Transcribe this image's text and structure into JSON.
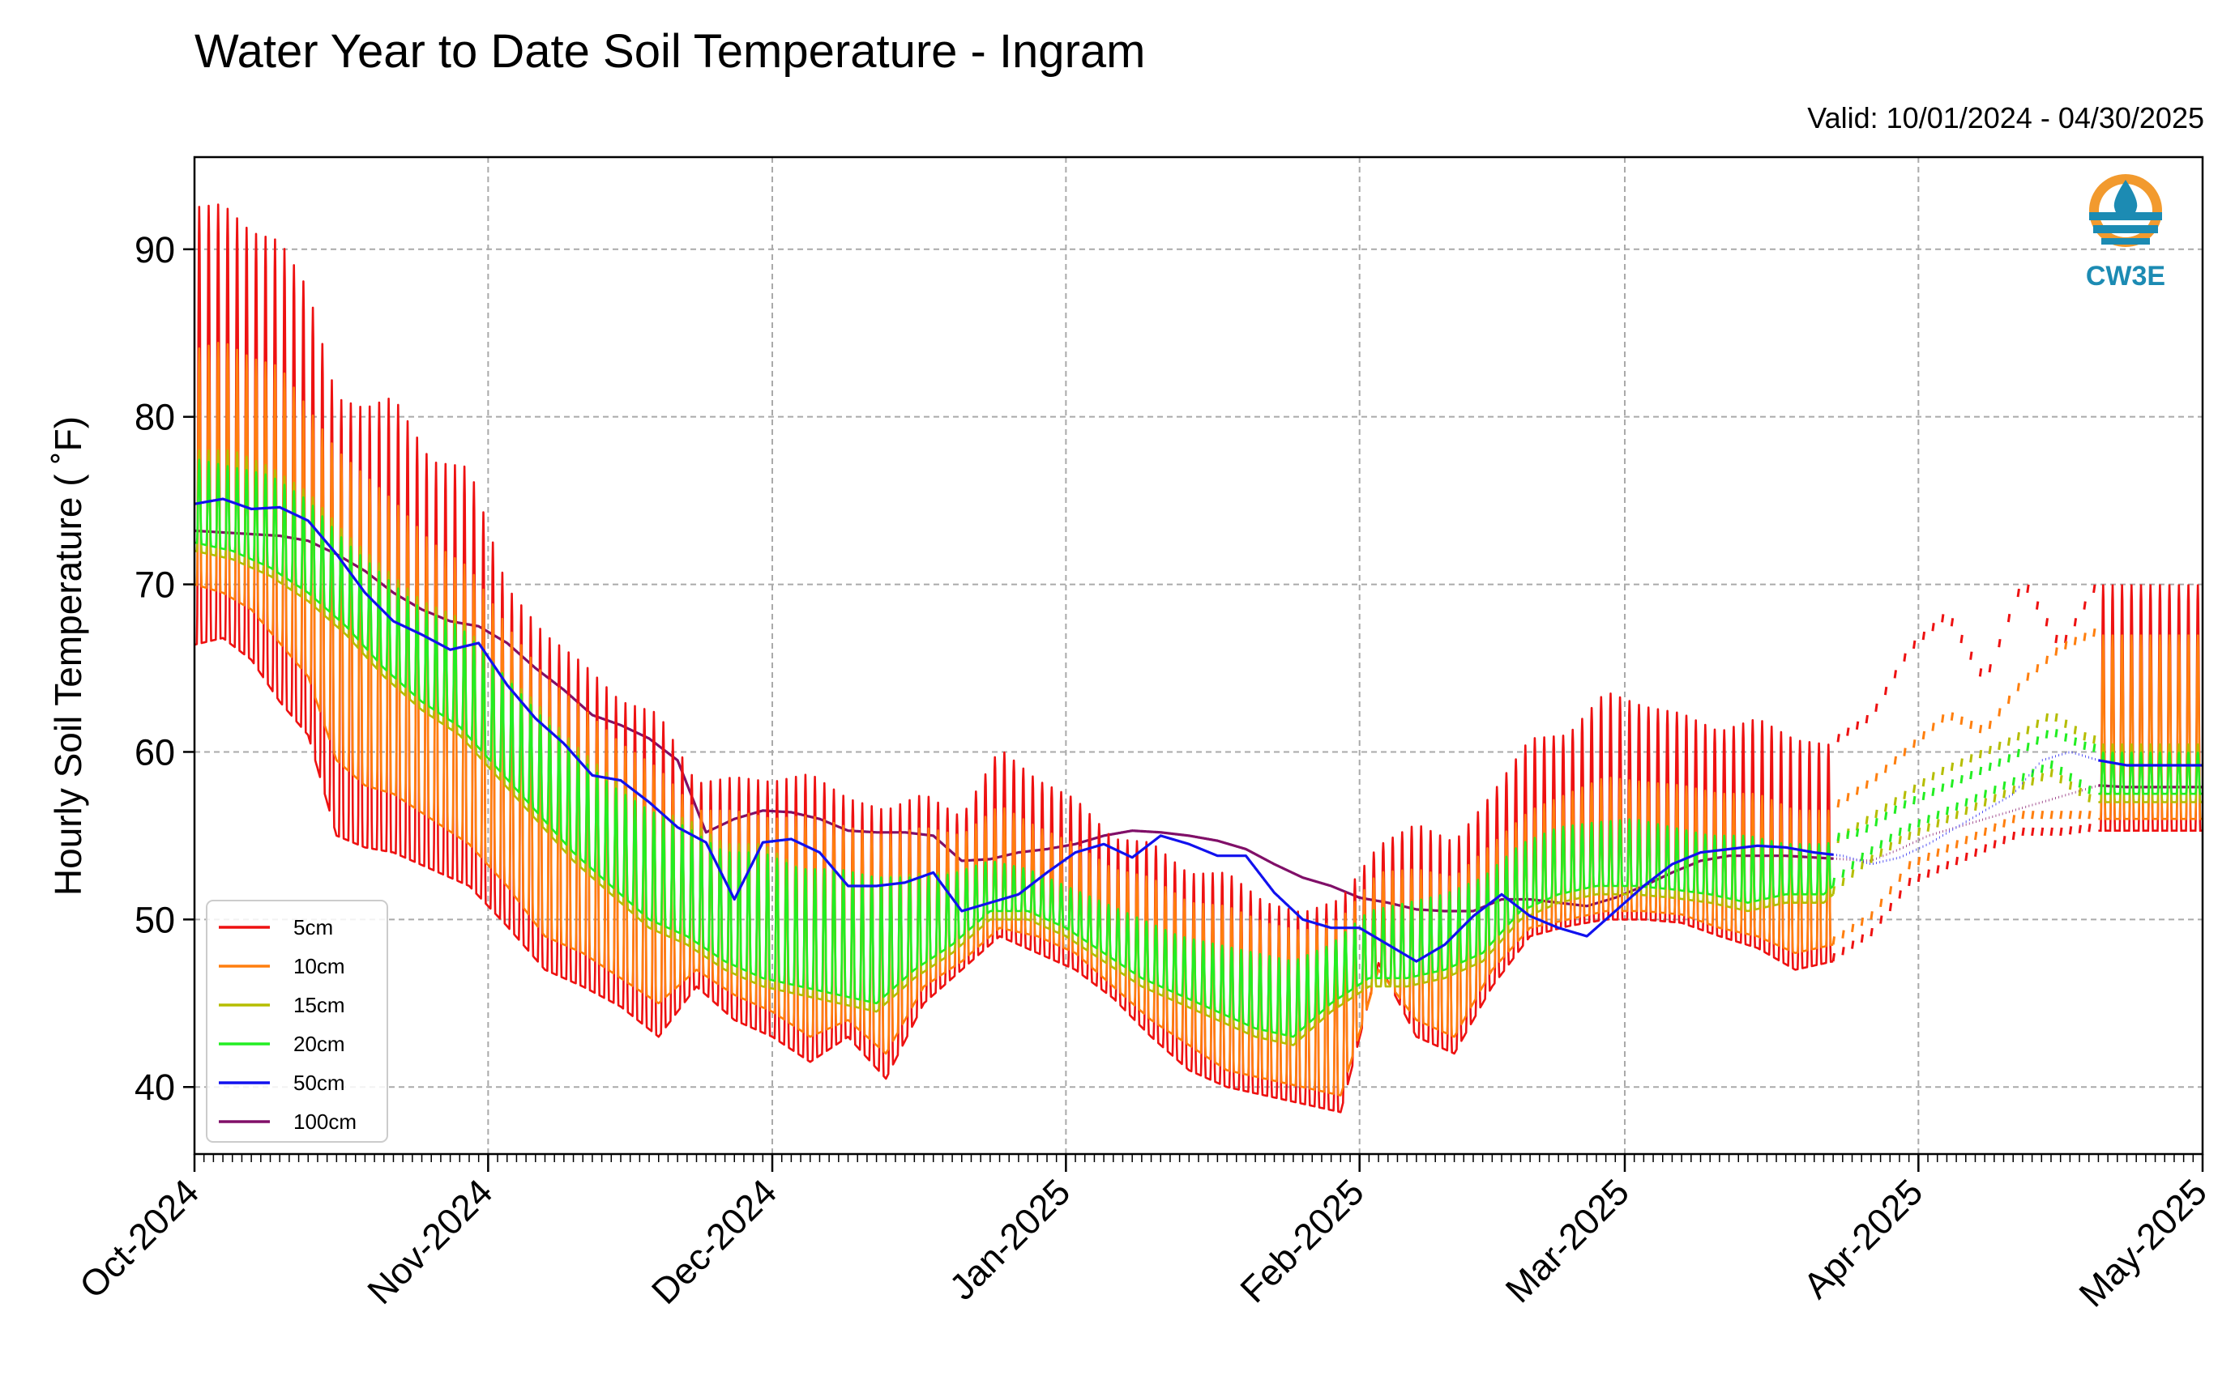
{
  "chart_data": {
    "type": "line",
    "title": "Water Year to Date Soil Temperature - Ingram",
    "subtitle": "Valid: 10/01/2024 - 04/30/2025",
    "ylabel": "Hourly Soil Temperature ( ˚F)",
    "xlabel": "",
    "x_range": [
      "2024-10-01",
      "2025-05-01"
    ],
    "ylim": [
      36,
      95.5
    ],
    "yticks": [
      40,
      50,
      60,
      70,
      80,
      90
    ],
    "xticks": [
      "Oct-2024",
      "Nov-2024",
      "Dec-2024",
      "Jan-2025",
      "Feb-2025",
      "Mar-2025",
      "Apr-2025",
      "May-2025"
    ],
    "grid": true,
    "legend_position": "lower-left",
    "colors": {
      "5cm": "#ee1111",
      "10cm": "#ff7f0e",
      "15cm": "#b5bd00",
      "20cm": "#22ee22",
      "50cm": "#1111ee",
      "100cm": "#800f68"
    },
    "series": [
      {
        "name": "5cm",
        "day": [
          0,
          3,
          6,
          9,
          12,
          15,
          18,
          21,
          25,
          29,
          33,
          37,
          41,
          45,
          49,
          53,
          57,
          61,
          65,
          69,
          73,
          77,
          81,
          85,
          89,
          93,
          97,
          101,
          105,
          109,
          113,
          117,
          121,
          125,
          129,
          133,
          137,
          141,
          145,
          149,
          153,
          157,
          161,
          165,
          169,
          173,
          177,
          181,
          185,
          189,
          193,
          197,
          201,
          204
        ],
        "high": [
          92.5,
          92.7,
          91,
          90.5,
          87.6,
          81.1,
          80.5,
          81.2,
          77.3,
          77,
          69.8,
          67,
          65.3,
          63,
          62.3,
          58.1,
          58.5,
          58.2,
          58.7,
          57.2,
          56.5,
          57.5,
          56.1,
          60.2,
          58.3,
          57.2,
          54.8,
          54.6,
          52.7,
          52.8,
          51,
          50.4,
          51.2,
          54.4,
          55.7,
          54.6,
          57.5,
          60.8,
          61,
          63.6,
          62.7,
          62.3,
          61.2,
          62,
          60.7,
          60.4,
          61.9,
          65.9,
          68,
          64,
          70,
          66,
          70,
          70
        ],
        "low": [
          66.4,
          66.8,
          65.5,
          63,
          61,
          55,
          54.3,
          54,
          53,
          52,
          49.6,
          47,
          46,
          44.8,
          43,
          46,
          44,
          43,
          41.5,
          43,
          40.5,
          45,
          47,
          49,
          48,
          47,
          45.3,
          43,
          41,
          40,
          39.5,
          39,
          38.5,
          47.4,
          43,
          42,
          46,
          49,
          49.6,
          50,
          50,
          49.8,
          49,
          48.3,
          47,
          47.5,
          49,
          52,
          53,
          54,
          55,
          55,
          55.3,
          55.3
        ]
      },
      {
        "name": "10cm",
        "day": [
          0,
          3,
          6,
          9,
          12,
          15,
          18,
          21,
          25,
          29,
          33,
          37,
          41,
          45,
          49,
          53,
          57,
          61,
          65,
          69,
          73,
          77,
          81,
          85,
          89,
          93,
          97,
          101,
          105,
          109,
          113,
          117,
          121,
          125,
          129,
          133,
          137,
          141,
          145,
          149,
          153,
          157,
          161,
          165,
          169,
          173,
          177,
          181,
          185,
          189,
          193,
          197,
          201,
          204
        ],
        "high": [
          84,
          84.5,
          83.5,
          83,
          80.5,
          78,
          76.5,
          75,
          72.5,
          71,
          67.5,
          64.5,
          62.6,
          60.5,
          59,
          56.5,
          56.5,
          56,
          56.2,
          55.5,
          55,
          55.5,
          55,
          56.8,
          55.5,
          54.5,
          53,
          52.5,
          51,
          50.8,
          49.8,
          49.3,
          50,
          52.8,
          53,
          52.5,
          54.5,
          56.5,
          57.5,
          58.5,
          58.2,
          58,
          57.5,
          57.5,
          56.5,
          56.5,
          58,
          60,
          62,
          61,
          64,
          66,
          67,
          67
        ],
        "low": [
          70,
          69.5,
          68.5,
          66.5,
          64.5,
          59.5,
          58,
          57.5,
          56,
          54.5,
          52,
          49,
          48,
          46.5,
          45,
          47,
          45.5,
          44.5,
          43,
          44,
          42,
          46,
          47.5,
          49.5,
          49,
          48,
          46,
          44,
          42.5,
          41,
          40.5,
          40,
          39.5,
          47,
          44,
          43,
          47,
          49.5,
          50,
          50.5,
          50.5,
          50.3,
          49.5,
          49,
          48,
          48.5,
          50,
          53,
          54,
          55,
          56,
          56,
          56,
          56
        ]
      },
      {
        "name": "15cm",
        "day": [
          0,
          4,
          8,
          12,
          16,
          20,
          24,
          28,
          32,
          36,
          40,
          44,
          48,
          52,
          56,
          60,
          64,
          68,
          72,
          76,
          80,
          84,
          88,
          92,
          96,
          100,
          104,
          108,
          112,
          116,
          120,
          124,
          128,
          132,
          136,
          140,
          144,
          148,
          152,
          156,
          160,
          164,
          168,
          172,
          176,
          180,
          184,
          188,
          192,
          196,
          200,
          204
        ],
        "high": [
          78,
          78,
          77,
          75.5,
          73,
          71,
          69,
          68,
          65,
          63,
          60.5,
          58.5,
          56.5,
          56,
          54.5,
          54.5,
          53,
          53,
          52.5,
          52.7,
          52.8,
          53.5,
          53,
          52,
          51,
          50,
          49,
          48.5,
          48,
          47.5,
          48.5,
          50.5,
          51,
          51.5,
          52.5,
          54.5,
          55.5,
          55.7,
          55.8,
          55.5,
          55,
          55,
          54,
          54,
          55.5,
          57,
          58.5,
          59.5,
          60.5,
          62,
          60.5,
          60.5
        ],
        "low": [
          72,
          71.5,
          70.5,
          69,
          67,
          64.5,
          62.5,
          61,
          58.5,
          56,
          53.5,
          51.5,
          49.5,
          48.5,
          47,
          46,
          45.5,
          45,
          44.5,
          46.5,
          48,
          50,
          50,
          49,
          47.5,
          46,
          45,
          44,
          43,
          42.5,
          44.5,
          46,
          46,
          46.5,
          47.5,
          50,
          51,
          51.5,
          51.5,
          51.3,
          51,
          50.5,
          51,
          51,
          53,
          54.5,
          55.5,
          56.5,
          57.5,
          58.5,
          57,
          57
        ]
      },
      {
        "name": "20cm",
        "day": [
          0,
          4,
          8,
          12,
          16,
          20,
          24,
          28,
          32,
          36,
          40,
          44,
          48,
          52,
          56,
          60,
          64,
          68,
          72,
          76,
          80,
          84,
          88,
          92,
          96,
          100,
          104,
          108,
          112,
          116,
          120,
          124,
          128,
          132,
          136,
          140,
          144,
          148,
          152,
          156,
          160,
          164,
          168,
          172,
          176,
          180,
          184,
          188,
          192,
          196,
          200,
          204
        ],
        "high": [
          77.5,
          77,
          76.5,
          75,
          72.5,
          70.5,
          68.5,
          67.5,
          65,
          62.5,
          60,
          58,
          56.5,
          55.5,
          54,
          54,
          53,
          53,
          52.5,
          52.5,
          52.7,
          53.5,
          53,
          52,
          51,
          50,
          49,
          48.5,
          48,
          47.5,
          48.5,
          50.5,
          51,
          51.5,
          52.5,
          54.5,
          55.5,
          55.8,
          56,
          55.5,
          55,
          55,
          54.5,
          54.5,
          55,
          56.5,
          57.5,
          58.5,
          59.5,
          61,
          60,
          60
        ],
        "low": [
          72.5,
          72,
          71,
          69.5,
          67.5,
          65,
          63,
          61.5,
          59,
          56.5,
          54,
          52,
          50,
          49,
          47.5,
          46.5,
          46,
          45.5,
          45,
          47,
          48.5,
          50.5,
          50.5,
          49.5,
          48,
          46.5,
          45.5,
          44.5,
          43.5,
          43,
          45,
          46.5,
          46.5,
          47,
          48,
          50.5,
          51.5,
          52,
          52,
          51.8,
          51.5,
          51,
          51.5,
          51.5,
          53.5,
          55,
          56,
          57,
          58,
          59,
          57.5,
          57.5
        ]
      },
      {
        "name": "50cm",
        "day": [
          0,
          3,
          6,
          9,
          12,
          15,
          18,
          21,
          24,
          27,
          30,
          33,
          36,
          39,
          42,
          45,
          48,
          51,
          54,
          57,
          60,
          63,
          66,
          69,
          72,
          75,
          78,
          81,
          84,
          87,
          90,
          93,
          96,
          99,
          102,
          105,
          108,
          111,
          114,
          117,
          120,
          123,
          126,
          129,
          132,
          135,
          138,
          141,
          144,
          147,
          150,
          153,
          156,
          159,
          162,
          165,
          168,
          171,
          174,
          177,
          180,
          183,
          186,
          189,
          192,
          195,
          198,
          201,
          204
        ],
        "values": [
          74.8,
          75.1,
          74.5,
          74.6,
          73.8,
          71.8,
          69.5,
          67.8,
          67,
          66.1,
          66.5,
          64,
          62,
          60.5,
          58.6,
          58.3,
          57,
          55.5,
          54.6,
          51.2,
          54.6,
          54.8,
          54,
          52,
          52,
          52.2,
          52.8,
          50.5,
          51,
          51.5,
          52.8,
          54,
          54.5,
          53.7,
          55,
          54.5,
          53.8,
          53.8,
          51.6,
          50,
          49.5,
          49.5,
          48.5,
          47.5,
          48.5,
          50.2,
          51.5,
          50.2,
          49.5,
          49,
          50.5,
          52,
          53.3,
          54,
          54.2,
          54.4,
          54.3,
          54,
          53.8,
          53.3,
          53.7,
          54.5,
          55.5,
          56.5,
          57.5,
          59.5,
          60,
          59.5,
          59.2
        ]
      },
      {
        "name": "100cm",
        "day": [
          0,
          3,
          6,
          9,
          12,
          15,
          18,
          21,
          24,
          27,
          30,
          33,
          36,
          39,
          42,
          45,
          48,
          51,
          54,
          57,
          60,
          63,
          66,
          69,
          72,
          75,
          78,
          81,
          84,
          87,
          90,
          93,
          96,
          99,
          102,
          105,
          108,
          111,
          114,
          117,
          120,
          123,
          126,
          129,
          132,
          135,
          138,
          141,
          144,
          147,
          150,
          153,
          156,
          159,
          162,
          165,
          168,
          171,
          174,
          177,
          180,
          183,
          186,
          189,
          192,
          195,
          198,
          201,
          204
        ],
        "values": [
          73.2,
          73.1,
          73,
          72.9,
          72.6,
          71.8,
          70.8,
          69.5,
          68.5,
          67.8,
          67.5,
          66.5,
          65,
          63.7,
          62.2,
          61.6,
          60.8,
          59.5,
          55.2,
          56,
          56.5,
          56.4,
          56,
          55.3,
          55.2,
          55.2,
          55,
          53.5,
          53.6,
          54,
          54.2,
          54.5,
          55,
          55.3,
          55.2,
          55,
          54.7,
          54.2,
          53.3,
          52.5,
          52,
          51.3,
          51,
          50.6,
          50.5,
          50.5,
          51.2,
          51.2,
          51,
          50.8,
          51.3,
          52,
          52.8,
          53.5,
          53.8,
          53.8,
          53.8,
          53.7,
          53.6,
          53.5,
          54.2,
          55,
          55.5,
          56,
          56.5,
          57,
          57.5,
          58,
          57.9
        ]
      }
    ]
  }
}
